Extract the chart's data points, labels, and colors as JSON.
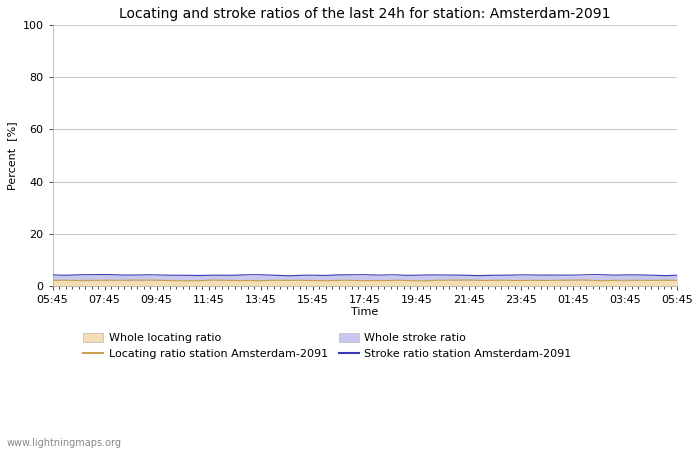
{
  "title": "Locating and stroke ratios of the last 24h for station: Amsterdam-2091",
  "xlabel": "Time",
  "ylabel": "Percent  [%]",
  "xlim": [
    0,
    96
  ],
  "ylim": [
    0,
    100
  ],
  "yticks": [
    0,
    20,
    40,
    60,
    80,
    100
  ],
  "xtick_labels": [
    "05:45",
    "07:45",
    "09:45",
    "11:45",
    "13:45",
    "15:45",
    "17:45",
    "19:45",
    "21:45",
    "23:45",
    "01:45",
    "03:45",
    "05:45"
  ],
  "n_points": 289,
  "whole_locating_ratio_value": 2.2,
  "whole_stroke_ratio_value": 4.2,
  "locating_station_value": 2.2,
  "stroke_station_value": 4.2,
  "color_whole_locating": "#f5deb3",
  "color_whole_stroke": "#c8c8ee",
  "color_locating_line": "#c8a050",
  "color_stroke_line": "#3838b8",
  "background_color": "#ffffff",
  "plot_bg_color": "#ffffff",
  "grid_color": "#cccccc",
  "watermark": "www.lightningmaps.org",
  "title_fontsize": 10,
  "axis_fontsize": 8,
  "tick_fontsize": 8,
  "legend_fontsize": 8
}
